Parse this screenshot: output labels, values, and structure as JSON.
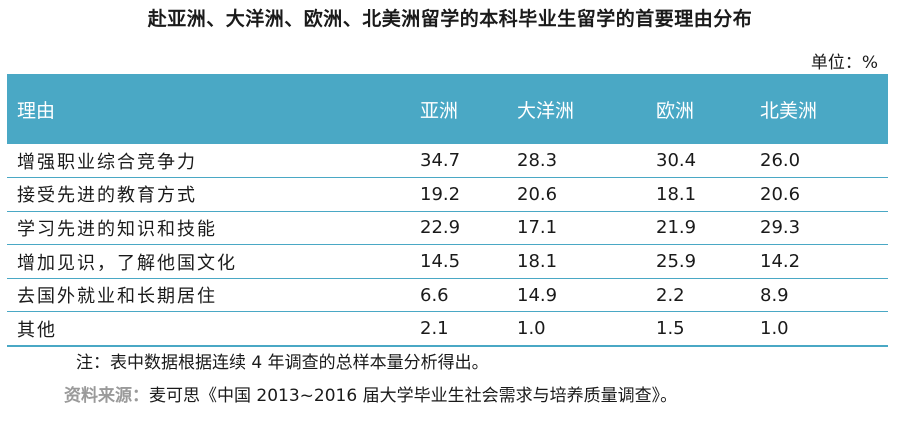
{
  "title": "赴亚洲、大洋洲、欧洲、北美洲留学的本科毕业生留学的首要理由分布",
  "unit": "单位：%",
  "footnote": "注：表中数据根据连续 4 年调查的总样本量分析得出。",
  "source_label": "资料来源：",
  "source_text": "麦可思《中国 2013~2016 届大学毕业生社会需求与培养质量调查》。",
  "colors": {
    "header_bg": "#4aa8c5",
    "header_text": "#ffffff",
    "rule": "#4aa8c5",
    "source_label": "#9a9a9a"
  },
  "chart_data": {
    "type": "table",
    "title": "赴亚洲、大洋洲、欧洲、北美洲留学的本科毕业生留学的首要理由分布",
    "columns": [
      "理由",
      "亚洲",
      "大洋洲",
      "欧洲",
      "北美洲"
    ],
    "rows": [
      {
        "label": "增强职业综合竞争力",
        "values": [
          "34.7",
          "28.3",
          "30.4",
          "26.0"
        ]
      },
      {
        "label": "接受先进的教育方式",
        "values": [
          "19.2",
          "20.6",
          "18.1",
          "20.6"
        ]
      },
      {
        "label": "学习先进的知识和技能",
        "values": [
          "22.9",
          "17.1",
          "21.9",
          "29.3"
        ]
      },
      {
        "label": "增加见识，了解他国文化",
        "values": [
          "14.5",
          "18.1",
          "25.9",
          "14.2"
        ]
      },
      {
        "label": "去国外就业和长期居住",
        "values": [
          "6.6",
          "14.9",
          "2.2",
          "8.9"
        ]
      },
      {
        "label": "其他",
        "values": [
          "2.1",
          "1.0",
          "1.5",
          "1.0"
        ]
      }
    ]
  }
}
